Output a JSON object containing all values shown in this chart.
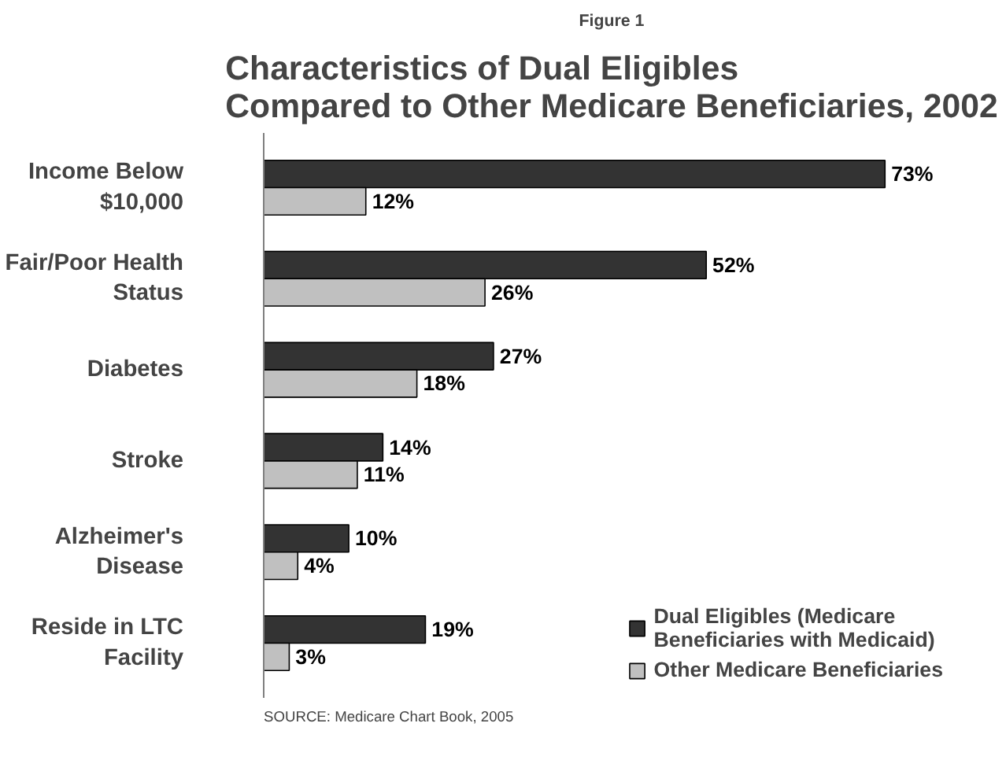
{
  "chart_data": {
    "type": "bar",
    "orientation": "horizontal",
    "subtitle": "Figure 1",
    "title": "Characteristics of Dual Eligibles\nCompared to Other Medicare Beneficiaries, 2002",
    "categories": [
      "Income Below\n$10,000",
      "Fair/Poor Health\nStatus",
      "Diabetes",
      "Stroke",
      "Alzheimer's\nDisease",
      "Reside in LTC\nFacility"
    ],
    "series": [
      {
        "name": "Dual Eligibles (Medicare\nBeneficiaries with Medicaid)",
        "color": "#333333",
        "values": [
          73,
          52,
          27,
          14,
          10,
          19
        ],
        "value_labels": [
          "73%",
          "52%",
          "27%",
          "14%",
          "10%",
          "19%"
        ]
      },
      {
        "name": "Other Medicare Beneficiaries",
        "color": "#c0c0c0",
        "values": [
          12,
          26,
          18,
          11,
          4,
          3
        ],
        "value_labels": [
          "12%",
          "26%",
          "18%",
          "11%",
          "4%",
          "3%"
        ]
      }
    ],
    "tick_labels": "y",
    "legend": "bottom right",
    "grid": false,
    "annotations": [
      "SOURCE: Medicare Chart Book, 2005"
    ]
  }
}
